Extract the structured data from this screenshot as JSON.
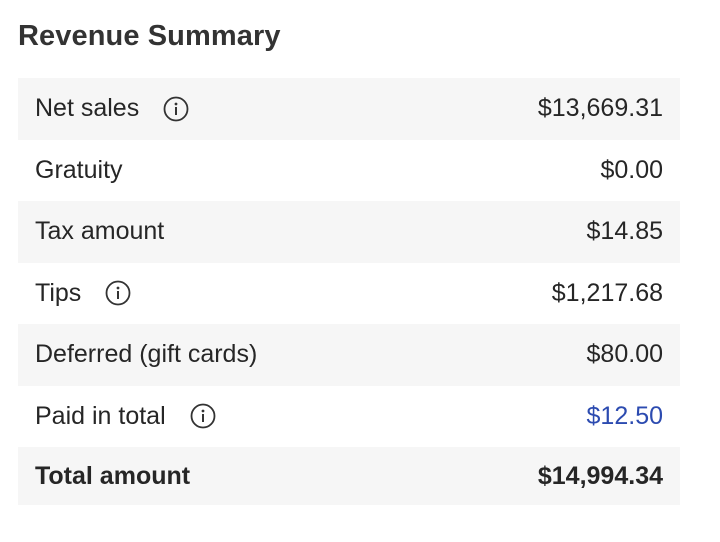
{
  "title": "Revenue Summary",
  "rows": [
    {
      "label": "Net sales",
      "value": "$13,669.31",
      "icon": "info-icon"
    },
    {
      "label": "Gratuity",
      "value": "$0.00"
    },
    {
      "label": "Tax amount",
      "value": "$14.85"
    },
    {
      "label": "Tips",
      "value": "$1,217.68",
      "icon": "info-icon"
    },
    {
      "label": "Deferred (gift cards)",
      "value": "$80.00"
    },
    {
      "label": "Paid in total",
      "value": "$12.50",
      "icon": "info-icon"
    }
  ],
  "total": {
    "label": "Total amount",
    "value": "$14,994.34"
  },
  "colors": {
    "link": "#2c4bb0",
    "row_shade": "#f6f6f6"
  }
}
